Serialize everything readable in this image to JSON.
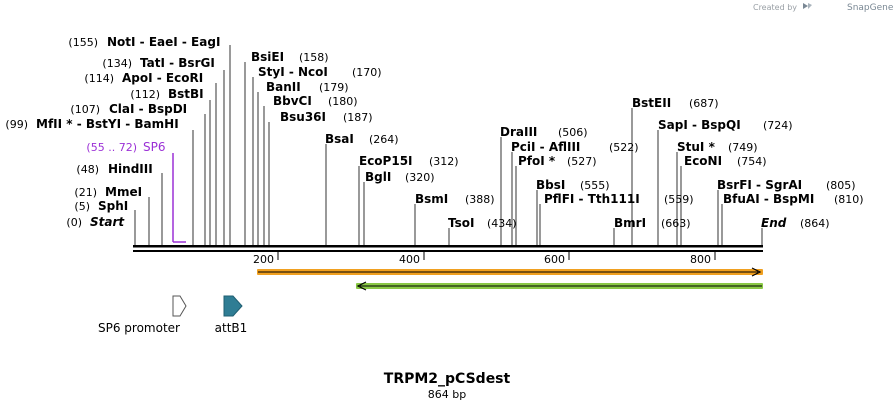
{
  "watermark": {
    "prefix": "Created by",
    "brand": "SnapGene"
  },
  "map": {
    "name": "TRPM2_pCSdest",
    "length_label": "864 bp",
    "length": 864,
    "ticks": [
      "200",
      "400",
      "600",
      "800"
    ]
  },
  "sites": [
    {
      "pos": "(155)",
      "name": "NotI  -  EaeI  -  EagI",
      "loc": 155,
      "italic": false,
      "purple": false
    },
    {
      "pos": "(134)",
      "name": "TatI  -  BsrGI",
      "loc": 134,
      "italic": false,
      "purple": false
    },
    {
      "pos": "(114)",
      "name": "ApoI  -  EcoRI",
      "loc": 114,
      "italic": false,
      "purple": false
    },
    {
      "pos": "(112)",
      "name": "BstBI",
      "loc": 112,
      "italic": false,
      "purple": false
    },
    {
      "pos": "(107)",
      "name": "ClaI  -  BspDI",
      "loc": 107,
      "italic": false,
      "purple": false
    },
    {
      "pos": "(99)",
      "name": "MfII *  -  BstYI  -  BamHI",
      "loc": 99,
      "italic": false,
      "purple": false
    },
    {
      "pos": "(55 .. 72)",
      "name": "SP6",
      "loc": 55,
      "italic": false,
      "purple": true
    },
    {
      "pos": "(48)",
      "name": "HindIII",
      "loc": 48,
      "italic": false,
      "purple": false
    },
    {
      "pos": "(21)",
      "name": "MmeI",
      "loc": 21,
      "italic": false,
      "purple": false
    },
    {
      "pos": "(5)",
      "name": "SphI",
      "loc": 5,
      "italic": false,
      "purple": false
    },
    {
      "pos": "(0)",
      "name": "Start",
      "loc": 0,
      "italic": true,
      "purple": false
    },
    {
      "pos": "(158)",
      "name": "BsiEI",
      "loc": 158,
      "italic": false,
      "purple": false
    },
    {
      "pos": "(170)",
      "name": "StyI  -  NcoI",
      "loc": 170,
      "italic": false,
      "purple": false
    },
    {
      "pos": "(179)",
      "name": "BanII",
      "loc": 179,
      "italic": false,
      "purple": false
    },
    {
      "pos": "(180)",
      "name": "BbvCI",
      "loc": 180,
      "italic": false,
      "purple": false
    },
    {
      "pos": "(187)",
      "name": "Bsu36I",
      "loc": 187,
      "italic": false,
      "purple": false
    },
    {
      "pos": "(264)",
      "name": "BsaI",
      "loc": 264,
      "italic": false,
      "purple": false
    },
    {
      "pos": "(312)",
      "name": "EcoP15I",
      "loc": 312,
      "italic": false,
      "purple": false
    },
    {
      "pos": "(320)",
      "name": "BglI",
      "loc": 320,
      "italic": false,
      "purple": false
    },
    {
      "pos": "(388)",
      "name": "BsmI",
      "loc": 388,
      "italic": false,
      "purple": false
    },
    {
      "pos": "(434)",
      "name": "TsoI",
      "loc": 434,
      "italic": false,
      "purple": false
    },
    {
      "pos": "(506)",
      "name": "DraIII",
      "loc": 506,
      "italic": false,
      "purple": false
    },
    {
      "pos": "(522)",
      "name": "PciI  -  AflIII",
      "loc": 522,
      "italic": false,
      "purple": false
    },
    {
      "pos": "(527)",
      "name": "PfoI *",
      "loc": 527,
      "italic": false,
      "purple": false
    },
    {
      "pos": "(555)",
      "name": "BbsI",
      "loc": 555,
      "italic": false,
      "purple": false
    },
    {
      "pos": "(559)",
      "name": "PflFI  -  Tth111I",
      "loc": 559,
      "italic": false,
      "purple": false
    },
    {
      "pos": "(663)",
      "name": "BmrI",
      "loc": 663,
      "italic": false,
      "purple": false
    },
    {
      "pos": "(687)",
      "name": "BstEII",
      "loc": 687,
      "italic": false,
      "purple": false
    },
    {
      "pos": "(724)",
      "name": "SapI  -  BspQI",
      "loc": 724,
      "italic": false,
      "purple": false
    },
    {
      "pos": "(749)",
      "name": "StuI *",
      "loc": 749,
      "italic": false,
      "purple": false
    },
    {
      "pos": "(754)",
      "name": "EcoNI",
      "loc": 754,
      "italic": false,
      "purple": false
    },
    {
      "pos": "(805)",
      "name": "BsrFI  -  SgrAI",
      "loc": 805,
      "italic": false,
      "purple": false
    },
    {
      "pos": "(810)",
      "name": "BfuAI  -  BspMI",
      "loc": 810,
      "italic": false,
      "purple": false
    },
    {
      "pos": "(864)",
      "name": "End",
      "loc": 864,
      "italic": true,
      "purple": false
    }
  ],
  "features": [
    {
      "name": "SP6 promoter",
      "direction": "forward",
      "color": "#ffffff"
    },
    {
      "name": "attB1",
      "direction": "forward",
      "color": "#2f7d94"
    }
  ],
  "reading_frames": [
    {
      "direction": "forward",
      "color": "#f0a020",
      "start": 171,
      "end": 864
    },
    {
      "direction": "reverse",
      "color": "#8ac845",
      "start": 305,
      "end": 864
    }
  ],
  "colors": {
    "backbone": "#000000",
    "sp6_label": "#9b30d6",
    "attB1": "#2f7d94",
    "orf_forward": "#f0a020",
    "orf_reverse": "#8ac845"
  }
}
